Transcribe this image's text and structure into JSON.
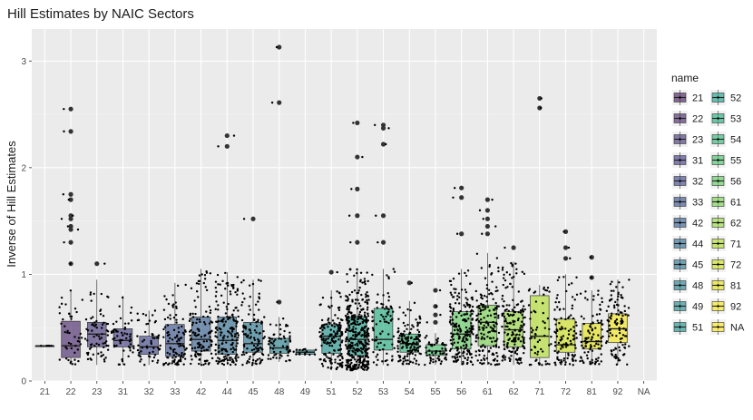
{
  "chart_data": {
    "type": "boxplot",
    "title": "Hill Estimates by NAIC Sectors",
    "xlabel": "",
    "ylabel": "Inverse of Hill Estimates",
    "ylim": [
      0,
      3.3
    ],
    "yticks": [
      0,
      1,
      2,
      3
    ],
    "grid": true,
    "jitter_points": true,
    "legend": {
      "title": "name",
      "position": "right",
      "columns": 2
    },
    "categories": [
      "21",
      "22",
      "23",
      "31",
      "32",
      "33",
      "42",
      "44",
      "45",
      "48",
      "49",
      "51",
      "52",
      "53",
      "54",
      "55",
      "56",
      "61",
      "62",
      "71",
      "72",
      "81",
      "92",
      "NA"
    ],
    "colors": [
      "#481D5E",
      "#482A6A",
      "#46397A",
      "#423D83",
      "#3F4889",
      "#3B528B",
      "#355E8D",
      "#2F6B8E",
      "#2B758E",
      "#26818E",
      "#23898E",
      "#20938C",
      "#1F9F88",
      "#26AD81",
      "#34B779",
      "#48C16E",
      "#60CA60",
      "#7AD151",
      "#95D840",
      "#B0DD2F",
      "#CCE11E",
      "#E5E419",
      "#F4E61E",
      "#FDE725"
    ],
    "boxes": [
      {
        "category": "21",
        "q1": 0.33,
        "median": 0.33,
        "q3": 0.33,
        "lower": 0.33,
        "upper": 0.33,
        "outliers": [],
        "n_points": 6
      },
      {
        "category": "22",
        "q1": 0.22,
        "median": 0.33,
        "q3": 0.56,
        "lower": 0.15,
        "upper": 0.85,
        "outliers": [
          1.1,
          1.3,
          1.42,
          1.45,
          1.52,
          1.55,
          1.7,
          1.75,
          2.34,
          2.55
        ],
        "n_points": 45
      },
      {
        "category": "23",
        "q1": 0.32,
        "median": 0.44,
        "q3": 0.55,
        "lower": 0.15,
        "upper": 0.95,
        "outliers": [
          1.1
        ],
        "n_points": 70
      },
      {
        "category": "31",
        "q1": 0.32,
        "median": 0.38,
        "q3": 0.49,
        "lower": 0.15,
        "upper": 0.8,
        "outliers": [],
        "n_points": 55
      },
      {
        "category": "32",
        "q1": 0.25,
        "median": 0.32,
        "q3": 0.42,
        "lower": 0.15,
        "upper": 0.66,
        "outliers": [],
        "n_points": 55
      },
      {
        "category": "33",
        "q1": 0.23,
        "median": 0.35,
        "q3": 0.53,
        "lower": 0.15,
        "upper": 0.92,
        "outliers": [],
        "n_points": 100
      },
      {
        "category": "42",
        "q1": 0.28,
        "median": 0.39,
        "q3": 0.6,
        "lower": 0.15,
        "upper": 1.05,
        "outliers": [],
        "n_points": 120
      },
      {
        "category": "44",
        "q1": 0.25,
        "median": 0.38,
        "q3": 0.6,
        "lower": 0.15,
        "upper": 1.02,
        "outliers": [
          2.2,
          2.3
        ],
        "n_points": 170
      },
      {
        "category": "45",
        "q1": 0.27,
        "median": 0.35,
        "q3": 0.55,
        "lower": 0.15,
        "upper": 0.95,
        "outliers": [
          1.52
        ],
        "n_points": 110
      },
      {
        "category": "48",
        "q1": 0.26,
        "median": 0.31,
        "q3": 0.4,
        "lower": 0.18,
        "upper": 0.6,
        "outliers": [
          0.74,
          2.61,
          3.13
        ],
        "n_points": 60
      },
      {
        "category": "49",
        "q1": 0.25,
        "median": 0.27,
        "q3": 0.29,
        "lower": 0.24,
        "upper": 0.3,
        "outliers": [],
        "n_points": 15
      },
      {
        "category": "51",
        "q1": 0.26,
        "median": 0.42,
        "q3": 0.53,
        "lower": 0.1,
        "upper": 0.85,
        "outliers": [
          1.02
        ],
        "n_points": 150
      },
      {
        "category": "52",
        "q1": 0.24,
        "median": 0.39,
        "q3": 0.6,
        "lower": 0.1,
        "upper": 1.05,
        "outliers": [
          1.3,
          1.55,
          1.8,
          2.1,
          2.42
        ],
        "n_points": 380
      },
      {
        "category": "53",
        "q1": 0.29,
        "median": 0.39,
        "q3": 0.68,
        "lower": 0.15,
        "upper": 1.05,
        "outliers": [
          1.3,
          1.55,
          2.22,
          2.37,
          2.4
        ],
        "n_points": 80
      },
      {
        "category": "54",
        "q1": 0.27,
        "median": 0.35,
        "q3": 0.44,
        "lower": 0.15,
        "upper": 0.75,
        "outliers": [
          0.92
        ],
        "n_points": 140
      },
      {
        "category": "55",
        "q1": 0.24,
        "median": 0.28,
        "q3": 0.34,
        "lower": 0.15,
        "upper": 0.45,
        "outliers": [
          0.55,
          0.62,
          0.7,
          0.85
        ],
        "n_points": 55
      },
      {
        "category": "56",
        "q1": 0.3,
        "median": 0.44,
        "q3": 0.65,
        "lower": 0.15,
        "upper": 1.05,
        "outliers": [
          1.38,
          1.72,
          1.81
        ],
        "n_points": 200
      },
      {
        "category": "61",
        "q1": 0.33,
        "median": 0.55,
        "q3": 0.71,
        "lower": 0.15,
        "upper": 1.2,
        "outliers": [
          1.38,
          1.45,
          1.52,
          1.6,
          1.7
        ],
        "n_points": 160
      },
      {
        "category": "62",
        "q1": 0.32,
        "median": 0.48,
        "q3": 0.65,
        "lower": 0.15,
        "upper": 1.12,
        "outliers": [
          1.25
        ],
        "n_points": 170
      },
      {
        "category": "71",
        "q1": 0.22,
        "median": 0.42,
        "q3": 0.8,
        "lower": 0.15,
        "upper": 0.9,
        "outliers": [
          2.56,
          2.65
        ],
        "n_points": 60
      },
      {
        "category": "72",
        "q1": 0.27,
        "median": 0.34,
        "q3": 0.58,
        "lower": 0.15,
        "upper": 1.0,
        "outliers": [
          1.15,
          1.25,
          1.4
        ],
        "n_points": 110
      },
      {
        "category": "81",
        "q1": 0.3,
        "median": 0.37,
        "q3": 0.54,
        "lower": 0.15,
        "upper": 0.85,
        "outliers": [
          0.97,
          1.16
        ],
        "n_points": 100
      },
      {
        "category": "92",
        "q1": 0.36,
        "median": 0.49,
        "q3": 0.63,
        "lower": 0.15,
        "upper": 0.95,
        "outliers": [],
        "n_points": 110
      },
      {
        "category": "NA",
        "q1": null,
        "median": null,
        "q3": null,
        "lower": null,
        "upper": null,
        "outliers": [],
        "n_points": 0
      }
    ]
  }
}
